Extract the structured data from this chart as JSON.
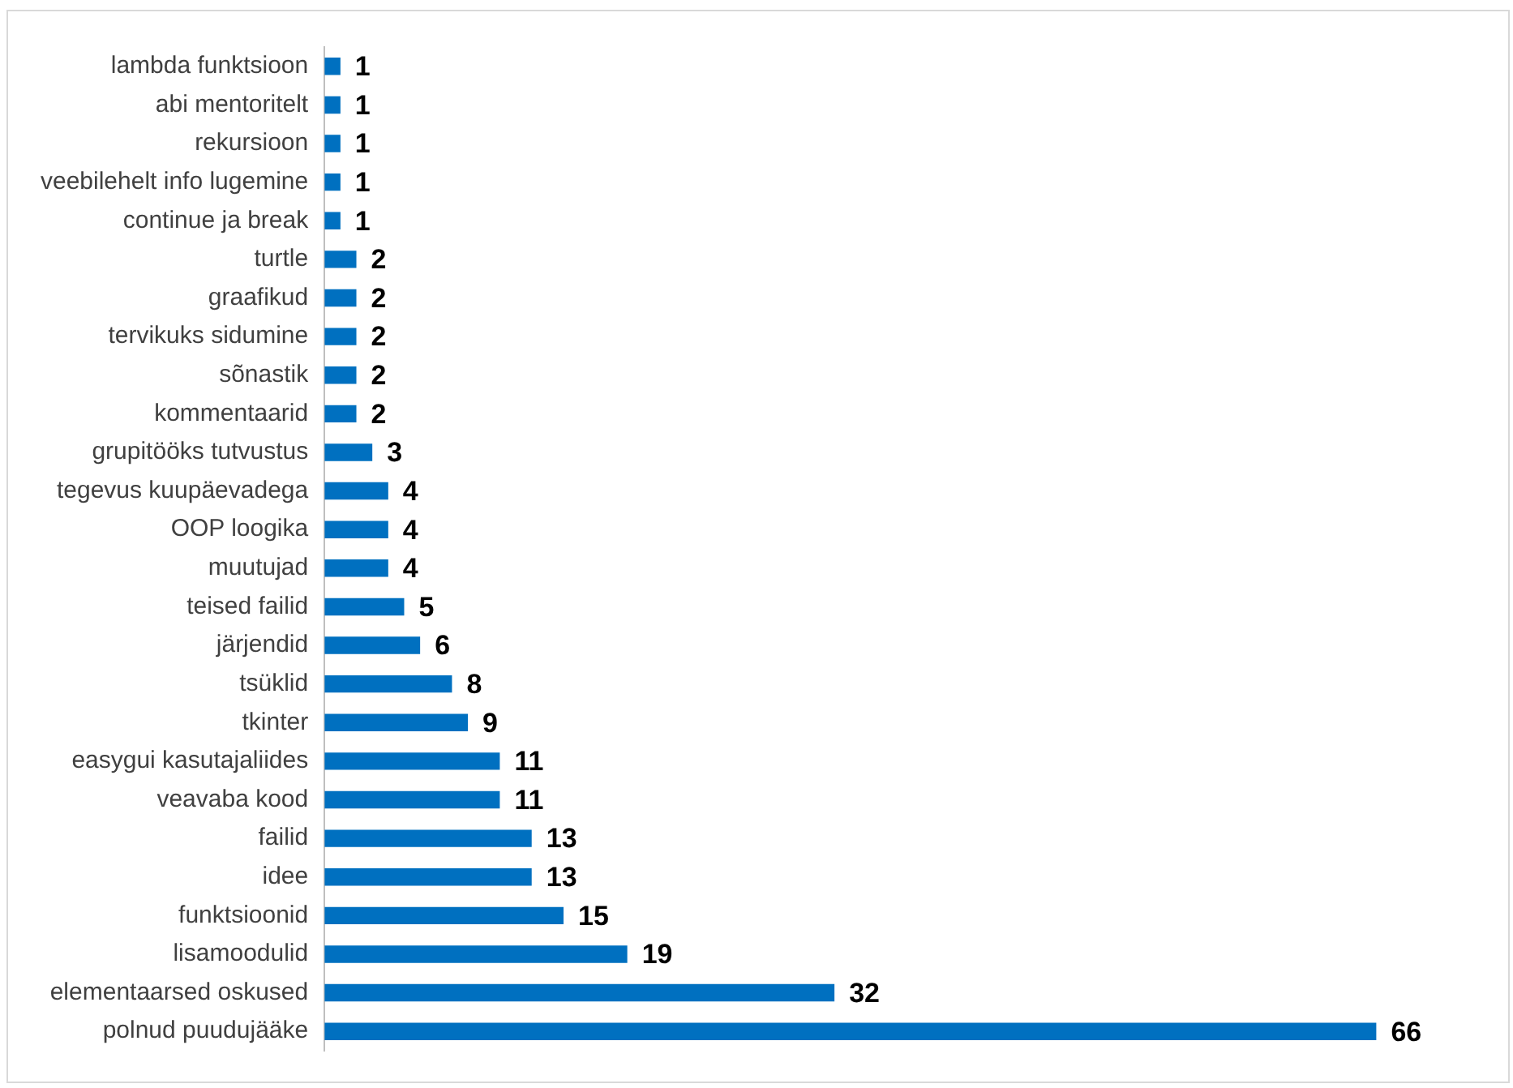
{
  "chart_data": {
    "type": "bar",
    "orientation": "horizontal",
    "data_labels": true,
    "legend": false,
    "tick_labels": "y",
    "categories": [
      "lambda funktsioon",
      "abi mentoritelt",
      "rekursioon",
      "veebilehelt info lugemine",
      "continue ja break",
      "turtle",
      "graafikud",
      "tervikuks sidumine",
      "sõnastik",
      "kommentaarid",
      "grupitööks tutvustus",
      "tegevus kuupäevadega",
      "OOP loogika",
      "muutujad",
      "teised failid",
      "järjendid",
      "tsüklid",
      "tkinter",
      "easygui kasutajaliides",
      "veavaba kood",
      "failid",
      "idee",
      "funktsioonid",
      "lisamoodulid",
      "elementaarsed oskused",
      "polnud puudujääke"
    ],
    "values": [
      1,
      1,
      1,
      1,
      1,
      2,
      2,
      2,
      2,
      2,
      3,
      4,
      4,
      4,
      5,
      6,
      8,
      9,
      11,
      11,
      13,
      13,
      15,
      19,
      32,
      66
    ],
    "color": "#0070c0"
  }
}
